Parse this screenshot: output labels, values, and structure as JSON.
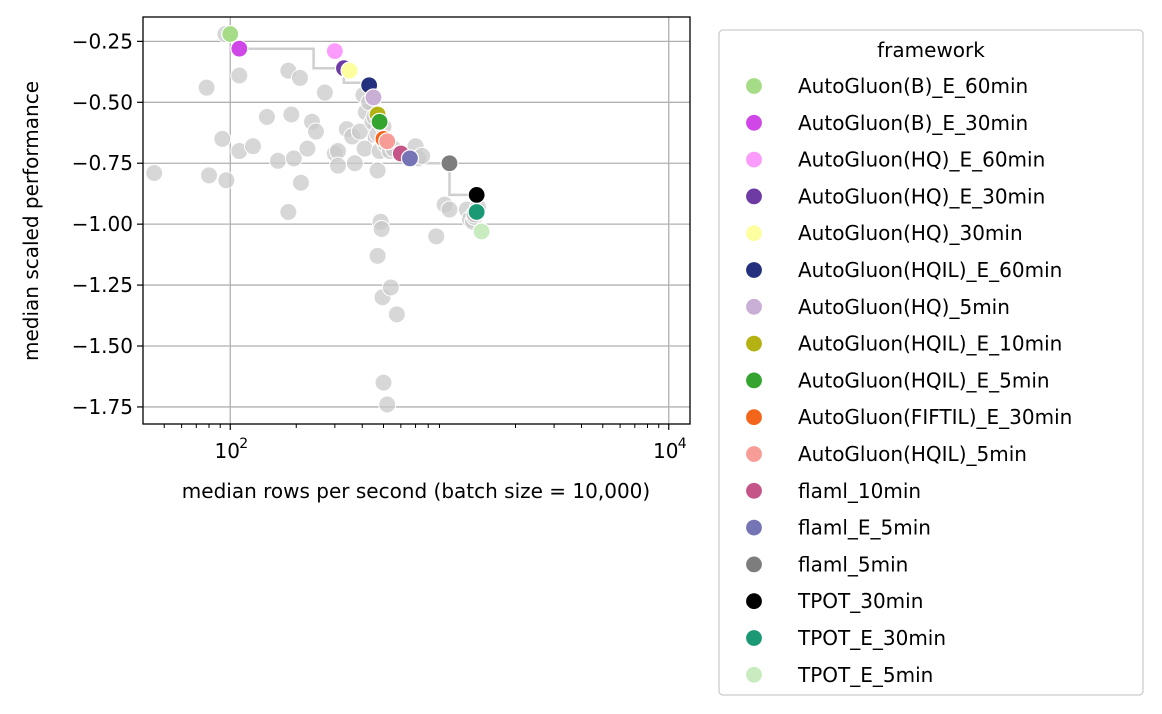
{
  "chart_data": {
    "type": "scatter",
    "title": "",
    "xlabel": "median rows per second (batch size = 10,000)",
    "ylabel": "median scaled performance",
    "xscale": "log",
    "xlim": [
      40,
      12500
    ],
    "ylim": [
      -1.82,
      -0.15
    ],
    "grid": true,
    "xticks": [
      {
        "value": 100,
        "label": "10",
        "exp": "2"
      },
      {
        "value": 10000,
        "label": "10",
        "exp": "4"
      }
    ],
    "yticks": [
      {
        "value": -0.25,
        "label": "−0.25"
      },
      {
        "value": -0.5,
        "label": "−0.50"
      },
      {
        "value": -0.75,
        "label": "−0.75"
      },
      {
        "value": -1.0,
        "label": "−1.00"
      },
      {
        "value": -1.25,
        "label": "−1.25"
      },
      {
        "value": -1.5,
        "label": "−1.50"
      },
      {
        "value": -1.75,
        "label": "−1.75"
      }
    ],
    "legend": {
      "title": "framework",
      "position": "outside-right"
    },
    "pareto_front": [
      [
        100,
        -0.22
      ],
      [
        110,
        -0.28
      ],
      [
        240,
        -0.28
      ],
      [
        240,
        -0.36
      ],
      [
        300,
        -0.36
      ],
      [
        330,
        -0.36
      ],
      [
        330,
        -0.42
      ],
      [
        420,
        -0.42
      ],
      [
        430,
        -0.43
      ],
      [
        430,
        -0.66
      ],
      [
        520,
        -0.66
      ],
      [
        520,
        -0.71
      ],
      [
        600,
        -0.71
      ],
      [
        660,
        -0.71
      ],
      [
        660,
        -0.75
      ],
      [
        1000,
        -0.75
      ],
      [
        1000,
        -0.75
      ],
      [
        1000,
        -0.88
      ],
      [
        1330,
        -0.88
      ],
      [
        1330,
        -0.95
      ],
      [
        1330,
        -1.03
      ]
    ],
    "background_points": [
      [
        95,
        -0.22
      ],
      [
        110,
        -0.39
      ],
      [
        78,
        -0.44
      ],
      [
        45,
        -0.79
      ],
      [
        80,
        -0.8
      ],
      [
        92,
        -0.65
      ],
      [
        96,
        -0.82
      ],
      [
        110,
        -0.7
      ],
      [
        127,
        -0.68
      ],
      [
        147,
        -0.56
      ],
      [
        165,
        -0.74
      ],
      [
        184,
        -0.37
      ],
      [
        190,
        -0.55
      ],
      [
        195,
        -0.73
      ],
      [
        208,
        -0.4
      ],
      [
        210,
        -0.83
      ],
      [
        184,
        -0.95
      ],
      [
        225,
        -0.69
      ],
      [
        236,
        -0.58
      ],
      [
        246,
        -0.62
      ],
      [
        270,
        -0.46
      ],
      [
        300,
        -0.71
      ],
      [
        310,
        -0.7
      ],
      [
        310,
        -0.76
      ],
      [
        340,
        -0.61
      ],
      [
        360,
        -0.64
      ],
      [
        370,
        -0.75
      ],
      [
        390,
        -0.62
      ],
      [
        405,
        -0.47
      ],
      [
        410,
        -0.69
      ],
      [
        415,
        -0.54
      ],
      [
        430,
        -0.5
      ],
      [
        445,
        -0.58
      ],
      [
        455,
        -0.56
      ],
      [
        470,
        -0.63
      ],
      [
        480,
        -0.7
      ],
      [
        485,
        -0.99
      ],
      [
        490,
        -1.02
      ],
      [
        470,
        -1.13
      ],
      [
        495,
        -1.3
      ],
      [
        540,
        -1.26
      ],
      [
        575,
        -1.37
      ],
      [
        500,
        -1.65
      ],
      [
        520,
        -1.74
      ],
      [
        470,
        -0.78
      ],
      [
        500,
        -0.6
      ],
      [
        510,
        -0.67
      ],
      [
        525,
        -0.66
      ],
      [
        535,
        -0.7
      ],
      [
        555,
        -0.69
      ],
      [
        700,
        -0.68
      ],
      [
        720,
        -0.73
      ],
      [
        750,
        -0.72
      ],
      [
        950,
        -0.92
      ],
      [
        1000,
        -0.94
      ],
      [
        870,
        -1.05
      ],
      [
        1200,
        -0.94
      ],
      [
        1240,
        -0.98
      ],
      [
        1280,
        -0.99
      ],
      [
        1300,
        -0.97
      ],
      [
        1300,
        -0.96
      ],
      [
        1350,
        -0.93
      ]
    ],
    "series": [
      {
        "name": "AutoGluon(B)_E_60min",
        "color": "#a6dc87",
        "x": 100,
        "y": -0.22
      },
      {
        "name": "AutoGluon(B)_E_30min",
        "color": "#cf47e6",
        "x": 110,
        "y": -0.28
      },
      {
        "name": "AutoGluon(HQ)_E_60min",
        "color": "#fb9bfb",
        "x": 300,
        "y": -0.29
      },
      {
        "name": "AutoGluon(HQ)_E_30min",
        "color": "#6e3aa4",
        "x": 330,
        "y": -0.36
      },
      {
        "name": "AutoGluon(HQ)_30min",
        "color": "#fdfea0",
        "x": 350,
        "y": -0.37
      },
      {
        "name": "AutoGluon(HQIL)_E_60min",
        "color": "#23307e",
        "x": 430,
        "y": -0.43
      },
      {
        "name": "AutoGluon(HQ)_5min",
        "color": "#c9aed6",
        "x": 450,
        "y": -0.48
      },
      {
        "name": "AutoGluon(HQIL)_E_10min",
        "color": "#b3b212",
        "x": 470,
        "y": -0.55
      },
      {
        "name": "AutoGluon(HQIL)_E_5min",
        "color": "#33a42e",
        "x": 480,
        "y": -0.58
      },
      {
        "name": "AutoGluon(FIFTIL)_E_30min",
        "color": "#f3651a",
        "x": 500,
        "y": -0.65
      },
      {
        "name": "AutoGluon(HQIL)_5min",
        "color": "#f79c97",
        "x": 520,
        "y": -0.66
      },
      {
        "name": "flaml_10min",
        "color": "#c55488",
        "x": 600,
        "y": -0.71
      },
      {
        "name": "flaml_E_5min",
        "color": "#7574b5",
        "x": 660,
        "y": -0.73
      },
      {
        "name": "flaml_5min",
        "color": "#7d7d7d",
        "x": 1000,
        "y": -0.75
      },
      {
        "name": "TPOT_30min",
        "color": "#000000",
        "x": 1330,
        "y": -0.88
      },
      {
        "name": "TPOT_E_30min",
        "color": "#1b9975",
        "x": 1330,
        "y": -0.95
      },
      {
        "name": "TPOT_E_5min",
        "color": "#c8ebc0",
        "x": 1400,
        "y": -1.03
      }
    ]
  }
}
